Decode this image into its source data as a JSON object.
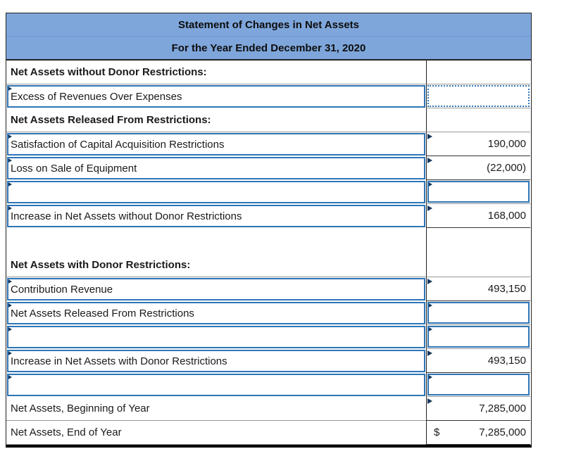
{
  "header": {
    "title": "Statement of Changes in Net Assets",
    "subtitle": "For the Year Ended December 31, 2020"
  },
  "table": {
    "rows": [
      {
        "label": "Net Assets without Donor Restrictions:",
        "label_type": "heading",
        "amount": "",
        "amount_type": "none",
        "currency": ""
      },
      {
        "label": "Excess of Revenues Over Expenses",
        "label_type": "input",
        "amount": "",
        "amount_type": "selected",
        "currency": ""
      },
      {
        "label": "Net Assets Released From Restrictions:",
        "label_type": "heading",
        "amount": "",
        "amount_type": "none",
        "currency": ""
      },
      {
        "label": "Satisfaction of Capital Acquisition Restrictions",
        "label_type": "input",
        "amount": "190,000",
        "amount_type": "value",
        "currency": ""
      },
      {
        "label": "Loss on Sale of Equipment",
        "label_type": "input",
        "amount": "(22,000)",
        "amount_type": "value",
        "currency": ""
      },
      {
        "label": "",
        "label_type": "input",
        "amount": "",
        "amount_type": "input",
        "currency": ""
      },
      {
        "label": "Increase in Net Assets without Donor Restrictions",
        "label_type": "input",
        "amount": "168,000",
        "amount_type": "value",
        "currency": ""
      },
      {
        "label": "",
        "label_type": "spacer",
        "amount": "",
        "amount_type": "none",
        "currency": ""
      },
      {
        "label": "Net Assets with Donor Restrictions:",
        "label_type": "heading",
        "amount": "",
        "amount_type": "none",
        "currency": ""
      },
      {
        "label": "Contribution Revenue",
        "label_type": "input",
        "amount": "493,150",
        "amount_type": "value",
        "currency": ""
      },
      {
        "label": "Net Assets Released From Restrictions",
        "label_type": "input",
        "amount": "",
        "amount_type": "input",
        "currency": ""
      },
      {
        "label": "",
        "label_type": "input",
        "amount": "",
        "amount_type": "input",
        "currency": ""
      },
      {
        "label": "Increase in Net Assets with Donor Restrictions",
        "label_type": "input",
        "amount": "493,150",
        "amount_type": "value",
        "currency": ""
      },
      {
        "label": "",
        "label_type": "input",
        "amount": "",
        "amount_type": "input",
        "currency": ""
      },
      {
        "label": "Net Assets, Beginning of Year",
        "label_type": "plain",
        "amount": "7,285,000",
        "amount_type": "value",
        "currency": ""
      },
      {
        "label": "Net Assets, End of Year",
        "label_type": "plain",
        "amount": "7,285,000",
        "amount_type": "total",
        "currency": "$"
      }
    ]
  },
  "colors": {
    "header_bg": "#7EA6DB",
    "input_border": "#2E75B6",
    "marker": "#17375E",
    "grid": "#9a9a9a"
  }
}
